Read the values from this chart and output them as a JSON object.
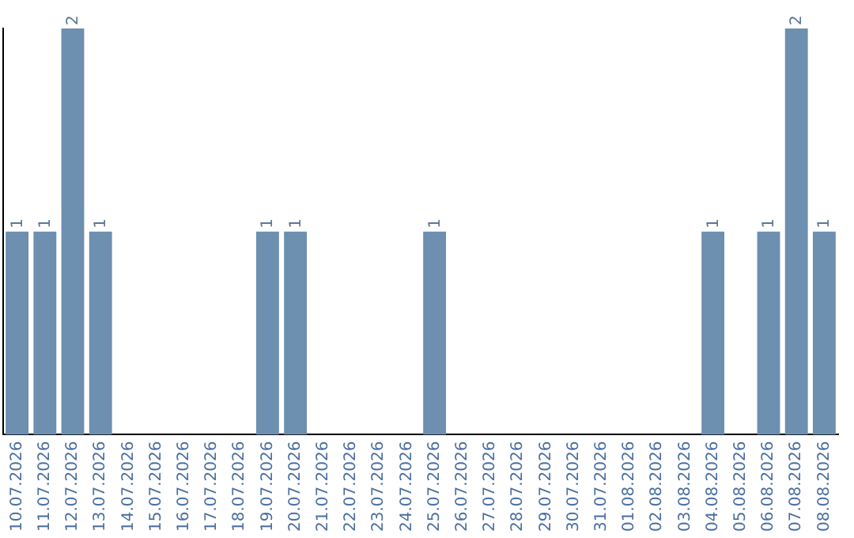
{
  "chart_data": {
    "type": "bar",
    "categories": [
      "10.07.2026",
      "11.07.2026",
      "12.07.2026",
      "13.07.2026",
      "14.07.2026",
      "15.07.2026",
      "16.07.2026",
      "17.07.2026",
      "18.07.2026",
      "19.07.2026",
      "20.07.2026",
      "21.07.2026",
      "22.07.2026",
      "23.07.2026",
      "24.07.2026",
      "25.07.2026",
      "26.07.2026",
      "27.07.2026",
      "28.07.2026",
      "29.07.2026",
      "30.07.2026",
      "31.07.2026",
      "01.08.2026",
      "02.08.2026",
      "03.08.2026",
      "04.08.2026",
      "05.08.2026",
      "06.08.2026",
      "07.08.2026",
      "08.08.2026"
    ],
    "values": [
      1,
      1,
      2,
      1,
      0,
      0,
      0,
      0,
      0,
      1,
      1,
      0,
      0,
      0,
      0,
      1,
      0,
      0,
      0,
      0,
      0,
      0,
      0,
      0,
      0,
      1,
      0,
      1,
      2,
      1
    ],
    "value_labels": [
      "1",
      "1",
      "2",
      "1",
      null,
      null,
      null,
      null,
      null,
      "1",
      "1",
      null,
      null,
      null,
      null,
      "1",
      null,
      null,
      null,
      null,
      null,
      null,
      null,
      null,
      null,
      "1",
      null,
      "1",
      "2",
      "1"
    ],
    "color": "#6d8fb0",
    "grid": false,
    "legend": false,
    "tick_labels": "x"
  }
}
